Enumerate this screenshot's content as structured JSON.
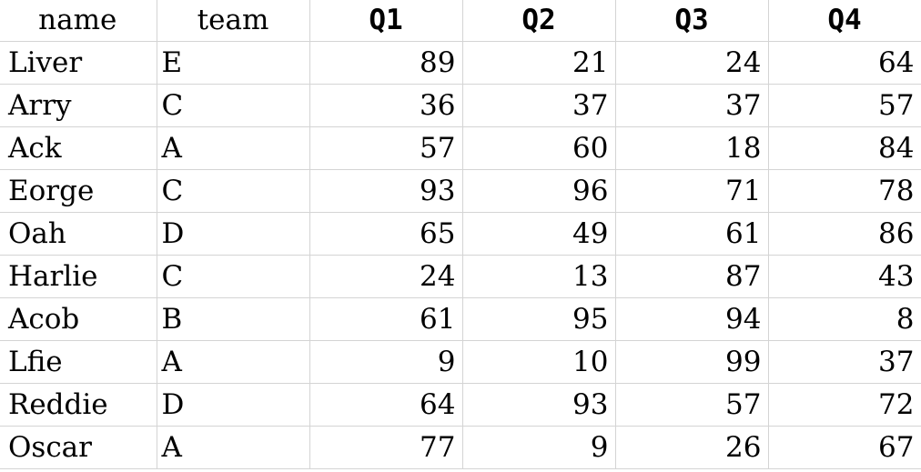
{
  "columns": [
    "name",
    "team",
    "Q1",
    "Q2",
    "Q3",
    "Q4"
  ],
  "rows": [
    [
      "Liver",
      "E",
      "89",
      "21",
      "24",
      "64"
    ],
    [
      "Arry",
      "C",
      "36",
      "37",
      "37",
      "57"
    ],
    [
      "Ack",
      "A",
      "57",
      "60",
      "18",
      "84"
    ],
    [
      "Eorge",
      "C",
      "93",
      "96",
      "71",
      "78"
    ],
    [
      "Oah",
      "D",
      "65",
      "49",
      "61",
      "86"
    ],
    [
      "Harlie",
      "C",
      "24",
      "13",
      "87",
      "43"
    ],
    [
      "Acob",
      "B",
      "61",
      "95",
      "94",
      "8"
    ],
    [
      "Lfie",
      "A",
      "9",
      "10",
      "99",
      "37"
    ],
    [
      "Reddie",
      "D",
      "64",
      "93",
      "57",
      "72"
    ],
    [
      "Oscar",
      "A",
      "77",
      "9",
      "26",
      "67"
    ]
  ],
  "colors": {
    "gridline": "#d4d4d4",
    "text": "#000000",
    "background": "#ffffff"
  }
}
